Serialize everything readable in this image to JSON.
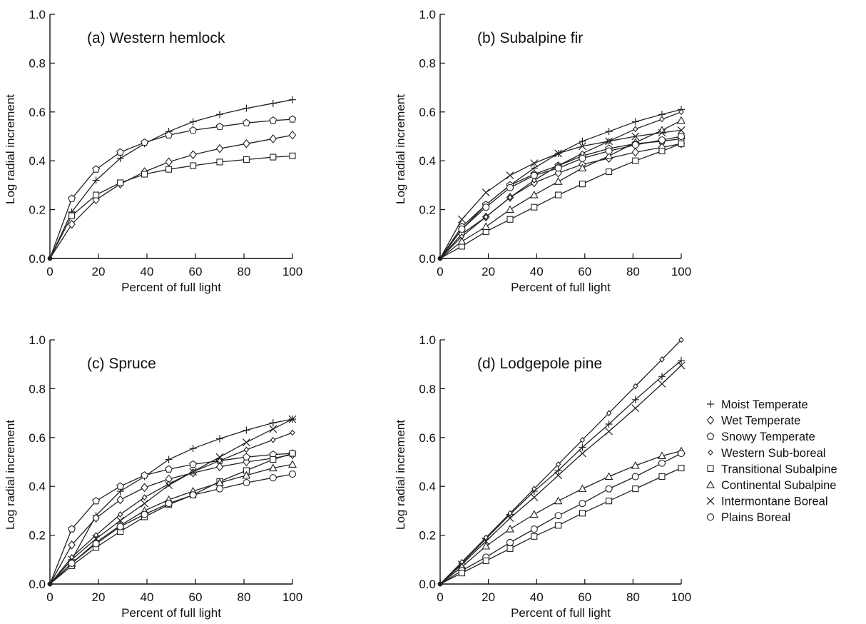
{
  "chart_data": [
    {
      "type": "line",
      "title": "(a) Western hemlock",
      "xlabel": "Percent of full light",
      "ylabel": "Log radial increment",
      "xlim": [
        0,
        100
      ],
      "ylim": [
        0,
        1.0
      ],
      "xticks": [
        "0",
        "20",
        "40",
        "60",
        "80",
        "100"
      ],
      "yticks": [
        "0.0",
        "0.2",
        "0.4",
        "0.6",
        "0.8",
        "1.0"
      ],
      "series": [
        {
          "name": "Moist Temperate",
          "marker": "plus",
          "x": [
            0,
            9,
            19,
            29,
            39,
            49,
            59,
            70,
            81,
            92,
            100
          ],
          "y": [
            0,
            0.19,
            0.32,
            0.41,
            0.47,
            0.52,
            0.56,
            0.59,
            0.615,
            0.635,
            0.65
          ]
        },
        {
          "name": "Wet Temperate",
          "marker": "diamond",
          "x": [
            0,
            9,
            19,
            29,
            39,
            49,
            59,
            70,
            81,
            92,
            100
          ],
          "y": [
            0,
            0.14,
            0.24,
            0.305,
            0.355,
            0.395,
            0.425,
            0.45,
            0.47,
            0.49,
            0.505
          ]
        },
        {
          "name": "Snowy Temperate",
          "marker": "pentagon",
          "x": [
            0,
            9,
            19,
            29,
            39,
            49,
            59,
            70,
            81,
            92,
            100
          ],
          "y": [
            0,
            0.245,
            0.365,
            0.435,
            0.475,
            0.505,
            0.525,
            0.54,
            0.555,
            0.565,
            0.57
          ]
        },
        {
          "name": "Transitional Subalpine",
          "marker": "square",
          "x": [
            0,
            9,
            19,
            29,
            39,
            49,
            59,
            70,
            81,
            92,
            100
          ],
          "y": [
            0,
            0.175,
            0.26,
            0.31,
            0.345,
            0.365,
            0.38,
            0.395,
            0.405,
            0.415,
            0.42
          ]
        }
      ]
    },
    {
      "type": "line",
      "title": "(b) Subalpine fir",
      "xlabel": "Percent of full light",
      "ylabel": "Log radial increment",
      "xlim": [
        0,
        100
      ],
      "ylim": [
        0,
        1.0
      ],
      "xticks": [
        "0",
        "20",
        "40",
        "60",
        "80",
        "100"
      ],
      "yticks": [
        "0.0",
        "0.2",
        "0.4",
        "0.6",
        "0.8",
        "1.0"
      ],
      "series": [
        {
          "name": "Moist Temperate",
          "marker": "plus",
          "x": [
            0,
            9,
            19,
            29,
            39,
            49,
            59,
            70,
            81,
            92,
            100
          ],
          "y": [
            0,
            0.12,
            0.22,
            0.3,
            0.37,
            0.43,
            0.48,
            0.52,
            0.56,
            0.59,
            0.61
          ]
        },
        {
          "name": "Wet Temperate",
          "marker": "diamond",
          "x": [
            0,
            9,
            19,
            29,
            39,
            49,
            59,
            70,
            81,
            92,
            100
          ],
          "y": [
            0,
            0.1,
            0.17,
            0.25,
            0.31,
            0.35,
            0.385,
            0.41,
            0.435,
            0.455,
            0.47
          ]
        },
        {
          "name": "Snowy Temperate",
          "marker": "pentagon",
          "x": [
            0,
            9,
            19,
            29,
            39,
            49,
            59,
            70,
            81,
            92,
            100
          ],
          "y": [
            0,
            0.13,
            0.22,
            0.3,
            0.345,
            0.38,
            0.42,
            0.45,
            0.47,
            0.48,
            0.49
          ]
        },
        {
          "name": "Western Sub-boreal",
          "marker": "smalldiamond",
          "x": [
            0,
            9,
            19,
            29,
            39,
            49,
            59,
            70,
            81,
            92,
            100
          ],
          "y": [
            0,
            0.09,
            0.17,
            0.25,
            0.32,
            0.38,
            0.43,
            0.48,
            0.53,
            0.57,
            0.6
          ]
        },
        {
          "name": "Transitional Subalpine",
          "marker": "square",
          "x": [
            0,
            9,
            19,
            29,
            39,
            49,
            59,
            70,
            81,
            92,
            100
          ],
          "y": [
            0,
            0.05,
            0.11,
            0.16,
            0.21,
            0.26,
            0.305,
            0.355,
            0.4,
            0.44,
            0.47
          ]
        },
        {
          "name": "Continental Subalpine",
          "marker": "triangle",
          "x": [
            0,
            9,
            19,
            29,
            39,
            49,
            59,
            70,
            81,
            92,
            100
          ],
          "y": [
            0,
            0.07,
            0.13,
            0.2,
            0.26,
            0.315,
            0.37,
            0.42,
            0.475,
            0.525,
            0.565
          ]
        },
        {
          "name": "Intermontane Boreal",
          "marker": "cross",
          "x": [
            0,
            9,
            19,
            29,
            39,
            49,
            59,
            70,
            81,
            92,
            100
          ],
          "y": [
            0,
            0.16,
            0.27,
            0.34,
            0.39,
            0.43,
            0.46,
            0.48,
            0.5,
            0.515,
            0.525
          ]
        },
        {
          "name": "Plains Boreal",
          "marker": "circle",
          "x": [
            0,
            9,
            19,
            29,
            39,
            49,
            59,
            70,
            81,
            92,
            100
          ],
          "y": [
            0,
            0.12,
            0.21,
            0.29,
            0.34,
            0.37,
            0.41,
            0.44,
            0.465,
            0.485,
            0.5
          ]
        }
      ]
    },
    {
      "type": "line",
      "title": "(c) Spruce",
      "xlabel": "Percent of full light",
      "ylabel": "Log radial increment",
      "xlim": [
        0,
        100
      ],
      "ylim": [
        0,
        1.0
      ],
      "xticks": [
        "0",
        "20",
        "40",
        "60",
        "80",
        "100"
      ],
      "yticks": [
        "0.0",
        "0.2",
        "0.4",
        "0.6",
        "0.8",
        "1.0"
      ],
      "series": [
        {
          "name": "Moist Temperate",
          "marker": "plus",
          "x": [
            0,
            9,
            19,
            29,
            39,
            49,
            59,
            70,
            81,
            92,
            100
          ],
          "y": [
            0,
            0.1,
            0.28,
            0.38,
            0.44,
            0.51,
            0.555,
            0.595,
            0.63,
            0.66,
            0.675
          ]
        },
        {
          "name": "Wet Temperate",
          "marker": "diamond",
          "x": [
            0,
            9,
            19,
            29,
            39,
            49,
            59,
            70,
            81,
            92,
            100
          ],
          "y": [
            0,
            0.16,
            0.27,
            0.345,
            0.395,
            0.43,
            0.455,
            0.48,
            0.5,
            0.515,
            0.53
          ]
        },
        {
          "name": "Snowy Temperate",
          "marker": "pentagon",
          "x": [
            0,
            9,
            19,
            29,
            39,
            49,
            59,
            70,
            81,
            92,
            100
          ],
          "y": [
            0,
            0.225,
            0.34,
            0.4,
            0.445,
            0.47,
            0.49,
            0.505,
            0.52,
            0.53,
            0.535
          ]
        },
        {
          "name": "Western Sub-boreal",
          "marker": "smalldiamond",
          "x": [
            0,
            9,
            19,
            29,
            39,
            49,
            59,
            70,
            81,
            92,
            100
          ],
          "y": [
            0,
            0.11,
            0.2,
            0.285,
            0.355,
            0.41,
            0.46,
            0.505,
            0.55,
            0.59,
            0.62
          ]
        },
        {
          "name": "Transitional Subalpine",
          "marker": "square",
          "x": [
            0,
            9,
            19,
            29,
            39,
            49,
            59,
            70,
            81,
            92,
            100
          ],
          "y": [
            0,
            0.075,
            0.15,
            0.215,
            0.275,
            0.325,
            0.365,
            0.42,
            0.465,
            0.51,
            0.535
          ]
        },
        {
          "name": "Continental Subalpine",
          "marker": "triangle",
          "x": [
            0,
            9,
            19,
            29,
            39,
            49,
            59,
            70,
            81,
            92,
            100
          ],
          "y": [
            0,
            0.085,
            0.17,
            0.24,
            0.3,
            0.345,
            0.38,
            0.415,
            0.445,
            0.475,
            0.49
          ]
        },
        {
          "name": "Intermontane Boreal",
          "marker": "cross",
          "x": [
            0,
            9,
            19,
            29,
            39,
            49,
            59,
            70,
            81,
            92,
            100
          ],
          "y": [
            0,
            0.1,
            0.185,
            0.26,
            0.33,
            0.405,
            0.46,
            0.52,
            0.58,
            0.635,
            0.675
          ]
        },
        {
          "name": "Plains Boreal",
          "marker": "circle",
          "x": [
            0,
            9,
            19,
            29,
            39,
            49,
            59,
            70,
            81,
            92,
            100
          ],
          "y": [
            0,
            0.085,
            0.165,
            0.235,
            0.285,
            0.33,
            0.365,
            0.39,
            0.415,
            0.435,
            0.45
          ]
        }
      ]
    },
    {
      "type": "line",
      "title": "(d) Lodgepole pine",
      "xlabel": "Percent of full light",
      "ylabel": "Log radial increment",
      "xlim": [
        0,
        100
      ],
      "ylim": [
        0,
        1.0
      ],
      "xticks": [
        "0",
        "20",
        "40",
        "60",
        "80",
        "100"
      ],
      "yticks": [
        "0.0",
        "0.2",
        "0.4",
        "0.6",
        "0.8",
        "1.0"
      ],
      "series": [
        {
          "name": "Moist Temperate",
          "marker": "plus",
          "x": [
            0,
            9,
            19,
            29,
            39,
            49,
            59,
            70,
            81,
            92,
            100
          ],
          "y": [
            0,
            0.085,
            0.185,
            0.285,
            0.38,
            0.465,
            0.56,
            0.655,
            0.755,
            0.85,
            0.915
          ]
        },
        {
          "name": "Western Sub-boreal",
          "marker": "smalldiamond",
          "x": [
            0,
            9,
            19,
            29,
            39,
            49,
            59,
            70,
            81,
            92,
            100
          ],
          "y": [
            0,
            0.09,
            0.19,
            0.29,
            0.39,
            0.49,
            0.59,
            0.7,
            0.81,
            0.92,
            1.0
          ]
        },
        {
          "name": "Intermontane Boreal",
          "marker": "cross",
          "x": [
            0,
            9,
            19,
            29,
            39,
            49,
            59,
            70,
            81,
            92,
            100
          ],
          "y": [
            0,
            0.08,
            0.175,
            0.27,
            0.355,
            0.445,
            0.535,
            0.625,
            0.72,
            0.82,
            0.895
          ]
        },
        {
          "name": "Continental Subalpine",
          "marker": "triangle",
          "x": [
            0,
            9,
            19,
            29,
            39,
            49,
            59,
            70,
            81,
            92,
            100
          ],
          "y": [
            0,
            0.07,
            0.155,
            0.225,
            0.285,
            0.34,
            0.39,
            0.44,
            0.485,
            0.525,
            0.545
          ]
        },
        {
          "name": "Plains Boreal",
          "marker": "circle",
          "x": [
            0,
            9,
            19,
            29,
            39,
            49,
            59,
            70,
            81,
            92,
            100
          ],
          "y": [
            0,
            0.055,
            0.11,
            0.17,
            0.225,
            0.28,
            0.33,
            0.39,
            0.44,
            0.495,
            0.535
          ]
        },
        {
          "name": "Transitional Subalpine",
          "marker": "square",
          "x": [
            0,
            9,
            19,
            29,
            39,
            49,
            59,
            70,
            81,
            92,
            100
          ],
          "y": [
            0,
            0.045,
            0.095,
            0.145,
            0.195,
            0.24,
            0.29,
            0.34,
            0.39,
            0.44,
            0.475
          ]
        }
      ]
    }
  ],
  "legend": {
    "items": [
      {
        "label": "Moist Temperate",
        "marker": "plus"
      },
      {
        "label": "Wet Temperate",
        "marker": "diamond"
      },
      {
        "label": "Snowy Temperate",
        "marker": "pentagon"
      },
      {
        "label": "Western Sub-boreal",
        "marker": "smalldiamond"
      },
      {
        "label": "Transitional Subalpine",
        "marker": "square"
      },
      {
        "label": "Continental Subalpine",
        "marker": "triangle"
      },
      {
        "label": "Intermontane Boreal",
        "marker": "cross"
      },
      {
        "label": "Plains Boreal",
        "marker": "circle"
      }
    ]
  }
}
